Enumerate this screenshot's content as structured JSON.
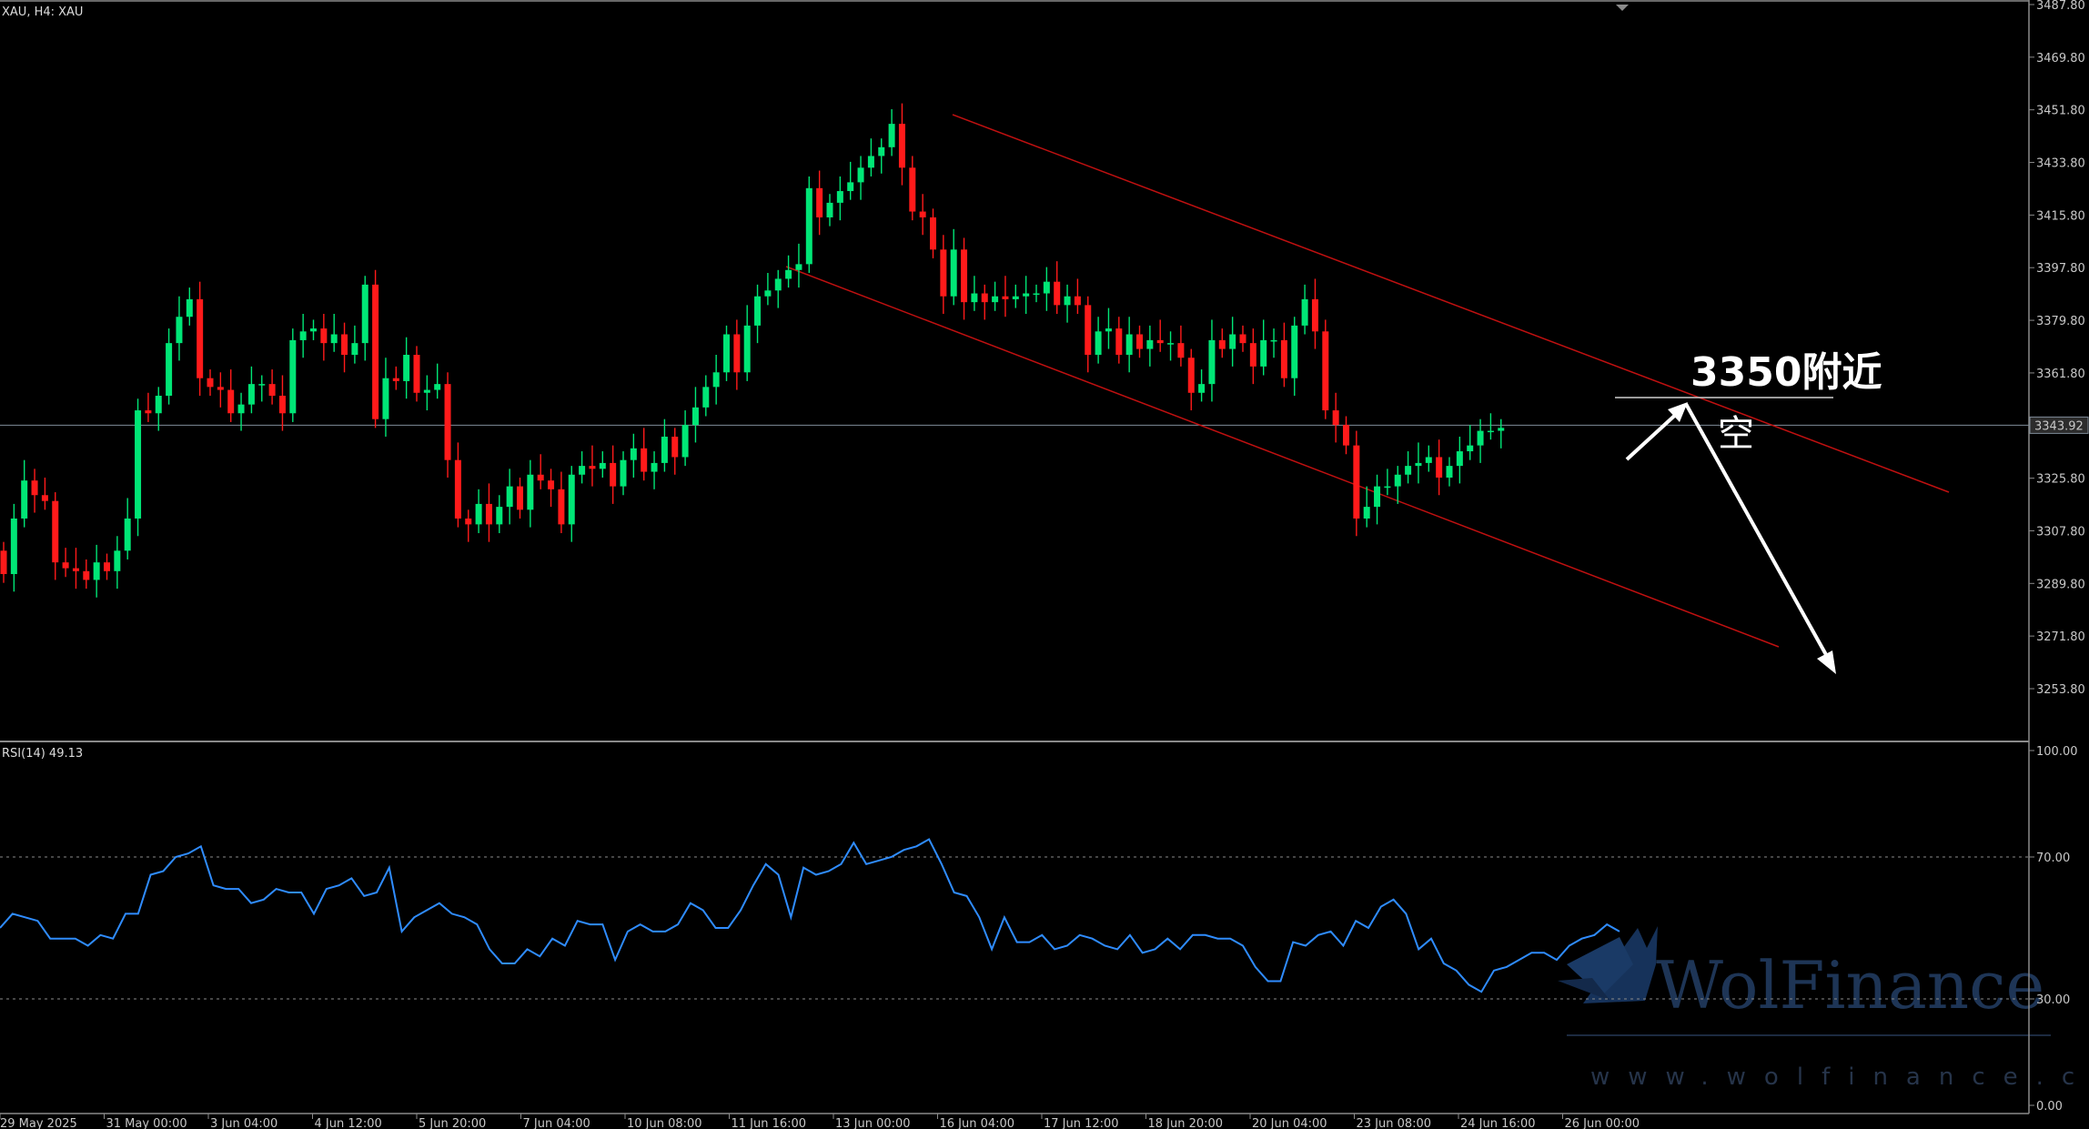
{
  "header": {
    "symbol_label": "XAU, H4:  XAU"
  },
  "indicator": {
    "label": "RSI(14) 49.13"
  },
  "price_badge": "3343.92",
  "annotation": {
    "level_text": "3350附近",
    "action_text": "空"
  },
  "watermark": {
    "brand": "WolFinance",
    "url": "www.wolfinance.com"
  },
  "colors": {
    "bull": "#00e676",
    "bear": "#ff1a1a",
    "rsi_line": "#2f8cff",
    "channel": "#c01010",
    "background": "#000000"
  },
  "chart_data": [
    {
      "type": "candlestick",
      "title": "",
      "ylim": [
        3244,
        3489
      ],
      "y_ticks": [
        "3487.80",
        "3469.80",
        "3451.80",
        "3433.80",
        "3415.80",
        "3397.80",
        "3379.80",
        "3361.80",
        "3343.80",
        "3325.80",
        "3307.80",
        "3289.80",
        "3271.80",
        "3253.80"
      ],
      "x_ticks": [
        "29 May 2025",
        "31 May 00:00",
        "3 Jun 04:00",
        "4 Jun 12:00",
        "5 Jun 20:00",
        "7 Jun 04:00",
        "10 Jun 08:00",
        "11 Jun 16:00",
        "13 Jun 00:00",
        "16 Jun 04:00",
        "17 Jun 12:00",
        "18 Jun 20:00",
        "20 Jun 04:00",
        "23 Jun 08:00",
        "24 Jun 16:00",
        "26 Jun 00:00"
      ],
      "current_price": 3343.92,
      "candles_close": [
        3293,
        3312,
        3325,
        3320,
        3318,
        3297,
        3295,
        3294,
        3291,
        3297,
        3294,
        3301,
        3312,
        3349,
        3348,
        3354,
        3372,
        3381,
        3387,
        3360,
        3357,
        3356,
        3348,
        3351,
        3358,
        3358,
        3354,
        3348,
        3373,
        3376,
        3377,
        3372,
        3375,
        3368,
        3372,
        3392,
        3346,
        3360,
        3359,
        3368,
        3355,
        3356,
        3358,
        3332,
        3312,
        3310,
        3317,
        3310,
        3316,
        3323,
        3315,
        3327,
        3325,
        3322,
        3310,
        3327,
        3330,
        3329,
        3331,
        3323,
        3332,
        3336,
        3328,
        3331,
        3340,
        3333,
        3344,
        3350,
        3357,
        3362,
        3375,
        3362,
        3378,
        3388,
        3390,
        3394,
        3397,
        3399,
        3425,
        3415,
        3420,
        3424,
        3427,
        3432,
        3436,
        3439,
        3447,
        3432,
        3417,
        3415,
        3404,
        3388,
        3404,
        3386,
        3389,
        3386,
        3388,
        3387,
        3388,
        3389,
        3389,
        3393,
        3385,
        3388,
        3385,
        3368,
        3376,
        3377,
        3368,
        3375,
        3370,
        3373,
        3372,
        3372,
        3367,
        3355,
        3358,
        3373,
        3370,
        3375,
        3372,
        3364,
        3373,
        3373,
        3360,
        3378,
        3387,
        3376,
        3349,
        3344,
        3337,
        3312,
        3316,
        3323,
        3323,
        3327,
        3330,
        3331,
        3333,
        3326,
        3330,
        3335,
        3337,
        3342,
        3342,
        3343
      ]
    },
    {
      "type": "line",
      "title": "",
      "ylim": [
        0,
        100
      ],
      "y_ticks": [
        "100.00",
        "70.00",
        "30.00",
        "0.00"
      ],
      "levels": [
        70,
        30
      ],
      "series": [
        {
          "values": [
            50,
            54,
            53,
            52,
            47,
            47,
            47,
            45,
            48,
            47,
            54,
            54,
            65,
            66,
            70,
            71,
            73,
            62,
            61,
            61,
            57,
            58,
            61,
            60,
            60,
            54,
            61,
            62,
            64,
            59,
            60,
            67,
            49,
            53,
            55,
            57,
            54,
            53,
            51,
            44,
            40,
            40,
            44,
            42,
            47,
            45,
            52,
            51,
            51,
            41,
            49,
            51,
            49,
            49,
            51,
            57,
            55,
            50,
            50,
            55,
            62,
            68,
            65,
            53,
            67,
            65,
            66,
            68,
            74,
            68,
            69,
            70,
            72,
            73,
            75,
            68,
            60,
            59,
            53,
            44,
            53,
            46,
            46,
            48,
            44,
            45,
            48,
            47,
            45,
            44,
            48,
            43,
            44,
            47,
            44,
            48,
            48,
            47,
            47,
            45,
            39,
            35,
            35,
            46,
            45,
            48,
            49,
            45,
            52,
            50,
            56,
            58,
            54,
            44,
            47,
            40,
            38,
            34,
            32,
            38,
            39,
            41,
            43,
            43,
            41,
            45,
            47,
            48,
            51,
            49
          ]
        }
      ]
    }
  ]
}
